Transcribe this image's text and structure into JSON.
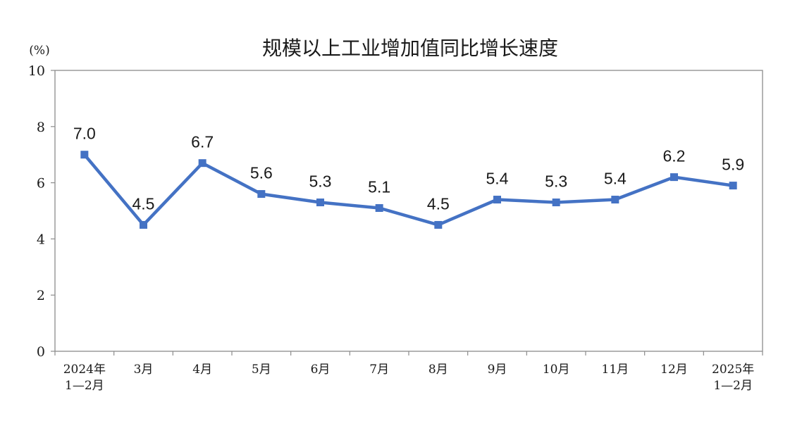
{
  "chart_data": {
    "type": "line",
    "title": "规模以上工业增加值同比增长速度",
    "unit_label": "(%)",
    "ylim": [
      0,
      10
    ],
    "yticks": [
      0,
      2,
      4,
      6,
      8,
      10
    ],
    "categories": [
      [
        "2024年",
        "1—2月"
      ],
      [
        "3月"
      ],
      [
        "4月"
      ],
      [
        "5月"
      ],
      [
        "6月"
      ],
      [
        "7月"
      ],
      [
        "8月"
      ],
      [
        "9月"
      ],
      [
        "10月"
      ],
      [
        "11月"
      ],
      [
        "12月"
      ],
      [
        "2025年",
        "1—2月"
      ]
    ],
    "series": [
      {
        "values": [
          7.0,
          4.5,
          6.7,
          5.6,
          5.3,
          5.1,
          4.5,
          5.4,
          5.3,
          5.4,
          6.2,
          5.9
        ],
        "labels": [
          "7.0",
          "4.5",
          "6.7",
          "5.6",
          "5.3",
          "5.1",
          "4.5",
          "5.4",
          "5.3",
          "5.4",
          "6.2",
          "5.9"
        ],
        "color": "#4472c4"
      }
    ],
    "grid": false,
    "legend": "none"
  }
}
